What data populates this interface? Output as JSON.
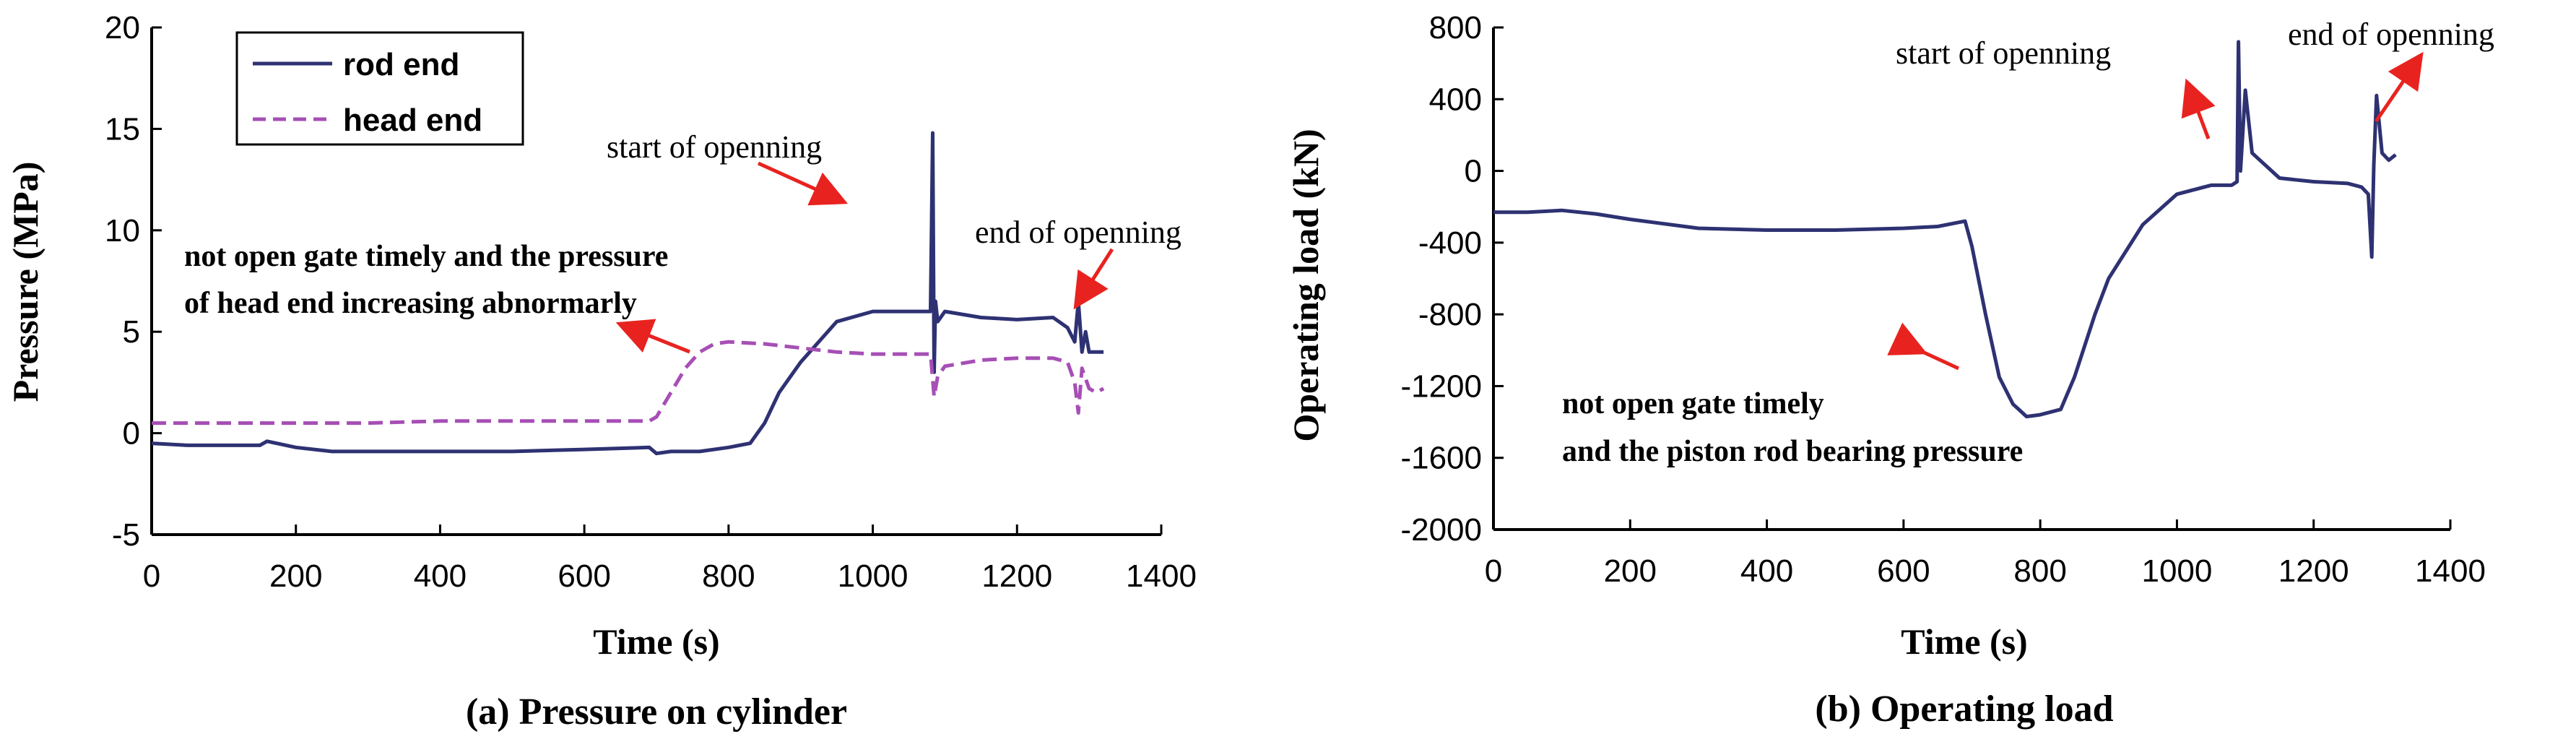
{
  "chart_data": [
    {
      "type": "line",
      "caption": "(a) Pressure on cylinder",
      "xlabel": "Time (s)",
      "ylabel": "Pressure (MPa)",
      "xlim": [
        0,
        1400
      ],
      "ylim": [
        -5,
        20
      ],
      "xticks": [
        "0",
        "200",
        "400",
        "600",
        "800",
        "1000",
        "1200",
        "1400"
      ],
      "yticks": [
        "-5",
        "0",
        "5",
        "10",
        "15",
        "20"
      ],
      "xtick_values": [
        0,
        200,
        400,
        600,
        800,
        1000,
        1200,
        1400
      ],
      "ytick_values": [
        -5,
        0,
        5,
        10,
        15,
        20
      ],
      "legend_position": "top-left",
      "series": [
        {
          "name": "rod end",
          "color": "#2e3172",
          "style": "solid",
          "x": [
            0,
            50,
            100,
            150,
            160,
            200,
            250,
            300,
            400,
            500,
            600,
            690,
            700,
            720,
            760,
            800,
            830,
            850,
            870,
            900,
            950,
            1000,
            1050,
            1080,
            1083,
            1085,
            1087,
            1090,
            1100,
            1150,
            1200,
            1250,
            1270,
            1280,
            1285,
            1290,
            1295,
            1300,
            1320
          ],
          "y": [
            -0.5,
            -0.6,
            -0.6,
            -0.6,
            -0.4,
            -0.7,
            -0.9,
            -0.9,
            -0.9,
            -0.9,
            -0.8,
            -0.7,
            -1.0,
            -0.9,
            -0.9,
            -0.7,
            -0.5,
            0.5,
            2.0,
            3.5,
            5.5,
            6.0,
            6.0,
            6.0,
            14.8,
            3.0,
            6.5,
            5.5,
            6.0,
            5.7,
            5.6,
            5.7,
            5.2,
            4.5,
            6.5,
            4.0,
            5.0,
            4.0,
            4.0
          ]
        },
        {
          "name": "head end",
          "color": "#a64fb5",
          "style": "dashed",
          "x": [
            0,
            100,
            200,
            300,
            400,
            500,
            600,
            690,
            700,
            720,
            740,
            760,
            780,
            800,
            850,
            900,
            950,
            1000,
            1050,
            1080,
            1085,
            1090,
            1100,
            1150,
            1200,
            1250,
            1270,
            1280,
            1285,
            1290,
            1300,
            1310,
            1320
          ],
          "y": [
            0.5,
            0.5,
            0.5,
            0.5,
            0.6,
            0.6,
            0.6,
            0.6,
            0.8,
            2.0,
            3.2,
            4.0,
            4.4,
            4.5,
            4.4,
            4.2,
            4.0,
            3.9,
            3.9,
            3.9,
            1.8,
            2.8,
            3.3,
            3.6,
            3.7,
            3.7,
            3.5,
            2.5,
            1.0,
            3.2,
            2.2,
            2.0,
            2.2
          ]
        }
      ],
      "annotations": [
        {
          "text": "start of openning",
          "arrow_to": [
            1075,
            12.5
          ]
        },
        {
          "text": "end of openning",
          "arrow_to": [
            1290,
            6.0
          ]
        },
        {
          "lines": [
            "not open gate timely and the pressure",
            "of head end increasing abnormarly"
          ],
          "arrow_to": [
            780,
            4.6
          ]
        }
      ]
    },
    {
      "type": "line",
      "caption": "(b) Operating load",
      "xlabel": "Time (s)",
      "ylabel": "Operating load (kN)",
      "xlim": [
        0,
        1400
      ],
      "ylim": [
        -2000,
        800
      ],
      "xticks": [
        "0",
        "200",
        "400",
        "600",
        "800",
        "1000",
        "1200",
        "1400"
      ],
      "yticks": [
        "-2000",
        "-1600",
        "-1200",
        "-800",
        "-400",
        "0",
        "400",
        "800"
      ],
      "xtick_values": [
        0,
        200,
        400,
        600,
        800,
        1000,
        1200,
        1400
      ],
      "ytick_values": [
        -2000,
        -1600,
        -1200,
        -800,
        -400,
        0,
        400,
        800
      ],
      "series": [
        {
          "name": "",
          "color": "#2e3172",
          "style": "solid",
          "x": [
            0,
            50,
            100,
            150,
            200,
            300,
            400,
            500,
            600,
            650,
            690,
            700,
            720,
            740,
            760,
            780,
            800,
            830,
            850,
            880,
            900,
            950,
            1000,
            1050,
            1080,
            1088,
            1090,
            1093,
            1100,
            1110,
            1150,
            1200,
            1250,
            1270,
            1280,
            1285,
            1288,
            1292,
            1300,
            1310,
            1320
          ],
          "y": [
            -230,
            -230,
            -220,
            -240,
            -270,
            -320,
            -330,
            -330,
            -320,
            -310,
            -280,
            -420,
            -800,
            -1150,
            -1300,
            -1370,
            -1360,
            -1330,
            -1150,
            -800,
            -600,
            -300,
            -130,
            -80,
            -80,
            -60,
            720,
            0,
            450,
            100,
            -40,
            -60,
            -70,
            -90,
            -130,
            -480,
            30,
            420,
            100,
            60,
            90
          ]
        }
      ],
      "annotations": [
        {
          "text": "start of openning",
          "arrow_to": [
            1080,
            270
          ]
        },
        {
          "text": "end of openning",
          "arrow_to": [
            1300,
            200
          ]
        },
        {
          "lines": [
            "not open gate timely",
            "and the piston rod bearing pressure"
          ],
          "arrow_to": [
            740,
            -1020
          ]
        }
      ]
    }
  ],
  "labels": {
    "a_start": "start of openning",
    "a_end": "end of openning",
    "a_note1": "not open gate timely and the pressure",
    "a_note2": "of head end increasing abnormarly",
    "b_start": "start of openning",
    "b_end": "end of openning",
    "b_note1": "not open gate timely",
    "b_note2": "and the piston rod bearing pressure",
    "legend_rod": "rod end",
    "legend_head": "head end"
  },
  "colors": {
    "arrow": "#e8231f",
    "axis": "#000000"
  }
}
